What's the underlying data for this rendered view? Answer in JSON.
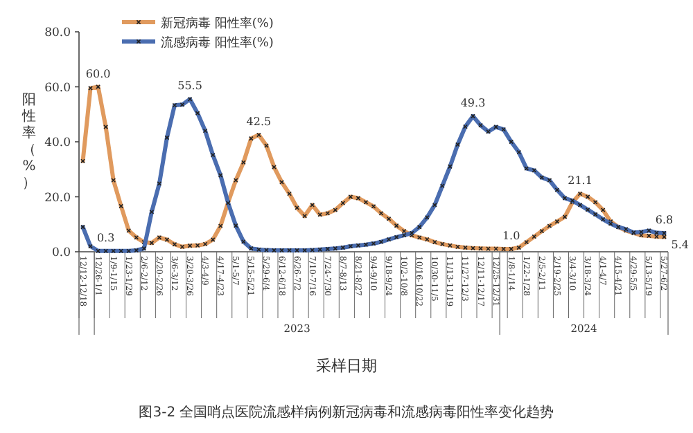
{
  "chart_data": {
    "type": "line",
    "ylabel": "阳性率（%）",
    "xlabel": "采样日期",
    "annotations": [
      "2023",
      "2024",
      "图3-2 全国哨点医院流感样病例新冠病毒和流感病毒阳性率变化趋势"
    ],
    "categories": [
      "12/12-12/18",
      null,
      "12/26-1/1",
      null,
      "1/9-1/15",
      null,
      "1/23-1/29",
      null,
      "2/6-2/12",
      null,
      "2/20-2/26",
      null,
      "3/6-3/12",
      null,
      "3/20-3/26",
      null,
      "4/3-4/9",
      null,
      "4/17-4/23",
      null,
      "5/1-5/7",
      null,
      "5/15-5/21",
      null,
      "5/29-6/4",
      null,
      "6/12-6/18",
      null,
      "6/26-7/2",
      null,
      "7/10-7/16",
      null,
      "7/24-7/30",
      null,
      "8/7-8/13",
      null,
      "8/21-8/27",
      null,
      "9/4-9/10",
      null,
      "9/18-9/24",
      null,
      "10/2-10/8",
      null,
      "10/16-10/22",
      null,
      "10/30-11/5",
      null,
      "11/13-11/19",
      null,
      "11/27-12/3",
      null,
      "12/11-12/17",
      null,
      "12/25-12/31",
      null,
      "1/8-1/14",
      null,
      "1/22-1/28",
      null,
      "2/5-2/11",
      null,
      "2/19-2/25",
      null,
      "3/4-3/10",
      null,
      "3/18-3/24",
      null,
      "4/1-4/7",
      null,
      "4/15-4/21",
      null,
      "4/29-5/5",
      null,
      "5/13-5/19",
      null,
      "5/27-6/2"
    ],
    "series": [
      {
        "name": "新冠病毒 阳性率(%)",
        "color": "#e09a5e",
        "values": [
          33,
          59.5,
          60.0,
          45.4,
          26,
          16.6,
          7.7,
          5.2,
          3.5,
          3.2,
          5.2,
          4.4,
          2.7,
          1.8,
          2.2,
          2.3,
          2.8,
          4.4,
          9.4,
          18,
          26,
          32.5,
          41.2,
          42.5,
          38.6,
          30.8,
          25.3,
          21.1,
          16,
          13,
          17,
          13.5,
          14,
          15.2,
          17.7,
          20,
          19.5,
          18,
          16.5,
          14,
          12,
          9.5,
          7.5,
          6,
          5.2,
          4.5,
          3.5,
          2.8,
          2.3,
          1.8,
          1.5,
          1.3,
          1.2,
          1.1,
          1.1,
          1.0,
          1.0,
          1.5,
          3.5,
          5.5,
          7.5,
          9.4,
          11,
          12.7,
          18,
          21.1,
          20,
          18,
          15.2,
          11,
          9,
          7.7,
          6.8,
          6,
          5.8,
          5.5,
          5.4
        ],
        "value_labels": [
          null,
          null,
          "60.0",
          null,
          null,
          null,
          null,
          null,
          null,
          null,
          null,
          null,
          null,
          null,
          null,
          null,
          null,
          null,
          null,
          null,
          null,
          null,
          null,
          "42.5",
          null,
          null,
          null,
          null,
          null,
          null,
          null,
          null,
          null,
          null,
          null,
          null,
          null,
          null,
          null,
          null,
          null,
          null,
          null,
          null,
          null,
          null,
          null,
          null,
          null,
          null,
          null,
          null,
          null,
          null,
          null,
          null,
          "1.0",
          null,
          null,
          null,
          null,
          null,
          null,
          null,
          null,
          "21.1",
          null,
          null,
          null,
          null,
          null,
          null,
          null,
          null,
          null,
          null,
          "5.4"
        ]
      },
      {
        "name": "流感病毒 阳性率(%)",
        "color": "#4a6db0",
        "values": [
          9,
          2,
          0.3,
          0.3,
          0.3,
          0.3,
          0.3,
          0.5,
          1.2,
          14.5,
          24.8,
          41.5,
          53.3,
          53.5,
          55.5,
          50.4,
          44,
          35.2,
          27.8,
          17.7,
          9.5,
          3.7,
          1.2,
          0.8,
          0.6,
          0.5,
          0.5,
          0.5,
          0.5,
          0.5,
          0.6,
          0.8,
          1,
          1.2,
          1.5,
          2,
          2.3,
          2.6,
          3,
          3.6,
          4.5,
          5.3,
          6,
          6.8,
          9,
          12.5,
          17,
          24,
          31,
          39,
          45.5,
          49.3,
          46,
          43.7,
          45.4,
          44.5,
          40,
          36.2,
          30.3,
          29.6,
          27,
          26,
          22.5,
          19.5,
          18.6,
          17,
          15.3,
          13.6,
          11.8,
          10.2,
          9,
          8.2,
          7,
          7.2,
          7.7,
          6.9,
          6.8
        ],
        "value_labels": [
          null,
          null,
          null,
          "0.3",
          null,
          null,
          null,
          null,
          null,
          null,
          null,
          null,
          null,
          null,
          "55.5",
          null,
          null,
          null,
          null,
          null,
          null,
          null,
          null,
          null,
          null,
          null,
          null,
          null,
          null,
          null,
          null,
          null,
          null,
          null,
          null,
          null,
          null,
          null,
          null,
          null,
          null,
          null,
          null,
          null,
          null,
          null,
          null,
          null,
          null,
          null,
          null,
          "49.3",
          null,
          null,
          null,
          null,
          null,
          null,
          null,
          null,
          null,
          null,
          null,
          null,
          null,
          null,
          null,
          null,
          null,
          null,
          null,
          null,
          null,
          null,
          null,
          null,
          "6.8"
        ]
      }
    ],
    "ylim": [
      0,
      80
    ],
    "yticks": [
      {
        "value": 0,
        "label": "0.0"
      },
      {
        "value": 20,
        "label": "20.0"
      },
      {
        "value": 40,
        "label": "40.0"
      },
      {
        "value": 60,
        "label": "60.0"
      },
      {
        "value": 80,
        "label": "80.0"
      }
    ],
    "legend": "top",
    "marker": "cross",
    "line_style": "solid"
  }
}
